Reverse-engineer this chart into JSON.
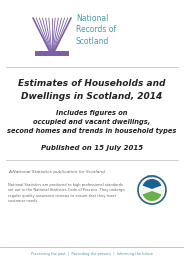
{
  "title": "Estimates of Households and\nDwellings in Scotland, 2014",
  "subtitle": "Includes figures on\noccupied and vacant dwellings,\nsecond homes and trends in household types",
  "published": "Published on 15 July 2015",
  "national_stats_label": "A National Statistics publication for Scotland",
  "national_stats_body": "National Statistics are produced to high professional standards\nset out in the National Statistics Code of Practice. They undergo\nregular quality assurance reviews to ensure that they meet\ncustomer needs.",
  "footer": "Preserving the past  |  Recording the present  |  Informing the future",
  "bg_color": "#ffffff",
  "title_color": "#222222",
  "subtitle_color": "#222222",
  "footer_color": "#4a9aa5",
  "separator_color": "#bbbbbb",
  "logo_purple": "#7b5ea7",
  "logo_text_color": "#4a9aa5",
  "national_stats_text_color": "#666666"
}
